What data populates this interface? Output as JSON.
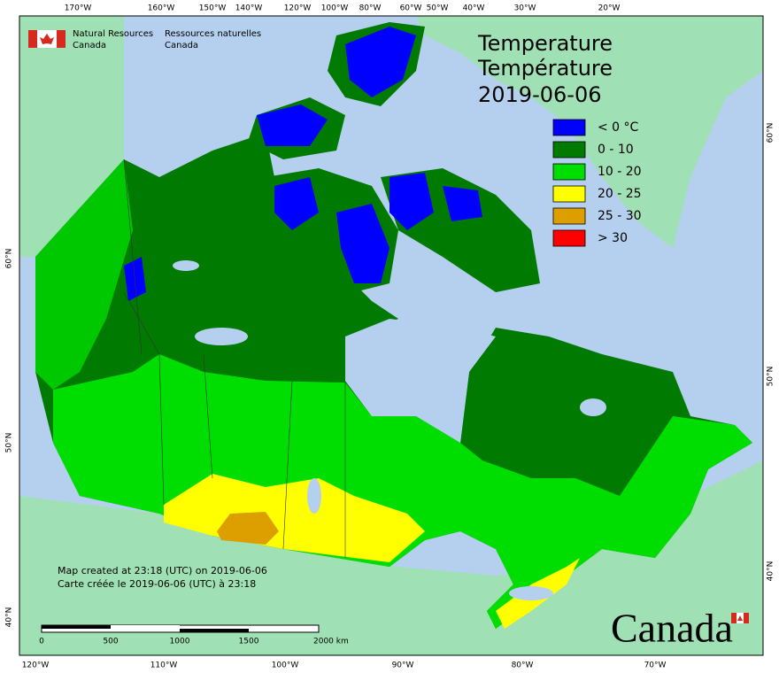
{
  "graticule": {
    "top": [
      "170°W",
      "160°W",
      "150°W",
      "140°W",
      "120°W",
      "100°W",
      "80°W",
      "60°W",
      "50°W",
      "40°W",
      "30°W",
      "20°W"
    ],
    "bottom": [
      "120°W",
      "110°W",
      "100°W",
      "90°W",
      "80°W",
      "70°W"
    ],
    "left": [
      "60°N",
      "50°N",
      "40°N"
    ],
    "right": [
      "60°N",
      "50°N",
      "40°N"
    ]
  },
  "header": {
    "agency_en": [
      "Natural Resources",
      "Canada"
    ],
    "agency_fr": [
      "Ressources naturelles",
      "Canada"
    ]
  },
  "title": {
    "en": "Temperature",
    "fr": "Température",
    "date": "2019-06-06"
  },
  "legend": [
    {
      "label": "< 0 °C",
      "color": "#0000ff"
    },
    {
      "label": "0 - 10",
      "color": "#007a00"
    },
    {
      "label": "10 - 20",
      "color": "#00dd00"
    },
    {
      "label": "20 - 25",
      "color": "#ffff00"
    },
    {
      "label": "25 - 30",
      "color": "#dd9f00"
    },
    {
      "label": "> 30",
      "color": "#ff0000"
    }
  ],
  "footer": {
    "en": "Map created at 23:18 (UTC) on 2019-06-06",
    "fr": "Carte créée le 2019-06-06 (UTC) à 23:18"
  },
  "scale": {
    "labels": [
      "0",
      "500",
      "1000",
      "1500",
      "2000 km"
    ]
  },
  "wordmark": "Canada"
}
